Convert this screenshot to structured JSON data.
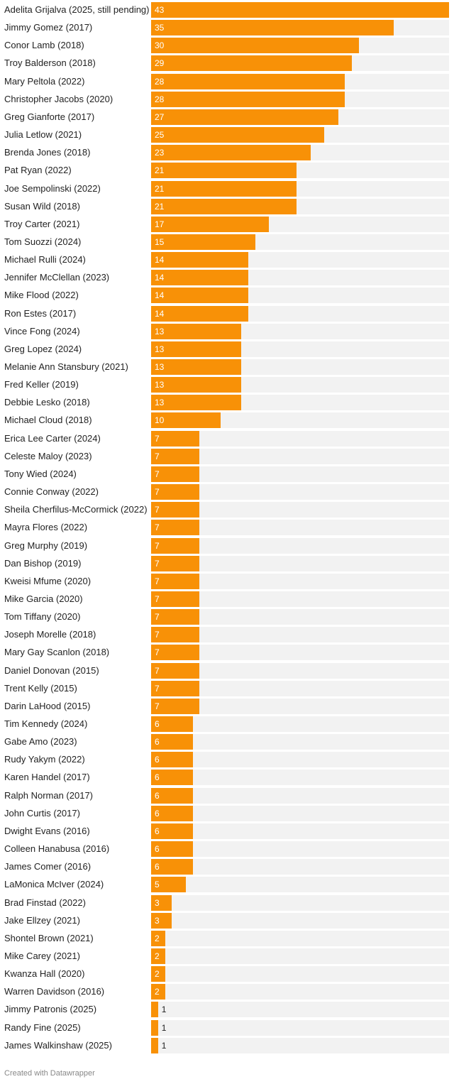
{
  "chart_data": {
    "type": "bar",
    "orientation": "horizontal",
    "title": "",
    "xlabel": "",
    "ylabel": "",
    "xlim": [
      0,
      43
    ],
    "grid": false,
    "categories": [
      "Adelita Grijalva (2025, still pending)",
      "Jimmy Gomez (2017)",
      "Conor Lamb (2018)",
      "Troy Balderson (2018)",
      "Mary Peltola (2022)",
      "Christopher Jacobs (2020)",
      "Greg Gianforte (2017)",
      "Julia Letlow (2021)",
      "Brenda Jones (2018)",
      "Pat Ryan (2022)",
      "Joe Sempolinski (2022)",
      "Susan Wild (2018)",
      "Troy Carter (2021)",
      "Tom Suozzi (2024)",
      "Michael Rulli (2024)",
      "Jennifer McClellan (2023)",
      "Mike Flood (2022)",
      "Ron Estes (2017)",
      "Vince Fong (2024)",
      "Greg Lopez (2024)",
      "Melanie Ann Stansbury (2021)",
      "Fred Keller (2019)",
      "Debbie Lesko (2018)",
      "Michael Cloud (2018)",
      "Erica Lee Carter (2024)",
      "Celeste Maloy (2023)",
      "Tony Wied (2024)",
      "Connie Conway (2022)",
      "Sheila Cherfilus-McCormick (2022)",
      "Mayra Flores (2022)",
      "Greg Murphy (2019)",
      "Dan Bishop (2019)",
      "Kweisi Mfume (2020)",
      "Mike Garcia (2020)",
      "Tom Tiffany (2020)",
      "Joseph Morelle (2018)",
      "Mary Gay Scanlon (2018)",
      "Daniel Donovan (2015)",
      "Trent Kelly (2015)",
      "Darin LaHood (2015)",
      "Tim Kennedy (2024)",
      "Gabe Amo (2023)",
      "Rudy Yakym (2022)",
      "Karen Handel (2017)",
      "Ralph Norman (2017)",
      "John Curtis (2017)",
      "Dwight Evans (2016)",
      "Colleen Hanabusa (2016)",
      "James Comer (2016)",
      "LaMonica McIver (2024)",
      "Brad Finstad (2022)",
      "Jake Ellzey (2021)",
      "Shontel Brown (2021)",
      "Mike Carey (2021)",
      "Kwanza Hall (2020)",
      "Warren Davidson (2016)",
      "Jimmy Patronis (2025)",
      "Randy Fine (2025)",
      "James Walkinshaw (2025)"
    ],
    "values": [
      43,
      35,
      30,
      29,
      28,
      28,
      27,
      25,
      23,
      21,
      21,
      21,
      17,
      15,
      14,
      14,
      14,
      14,
      13,
      13,
      13,
      13,
      13,
      10,
      7,
      7,
      7,
      7,
      7,
      7,
      7,
      7,
      7,
      7,
      7,
      7,
      7,
      7,
      7,
      7,
      6,
      6,
      6,
      6,
      6,
      6,
      6,
      6,
      6,
      5,
      3,
      3,
      2,
      2,
      2,
      2,
      1,
      1,
      1
    ]
  },
  "colors": {
    "bar": "#f89107",
    "track": "#f2f2f2",
    "label_inside": "#ffffff",
    "label_outside": "#1d1d1d"
  },
  "footer": {
    "credit": "Created with Datawrapper"
  }
}
